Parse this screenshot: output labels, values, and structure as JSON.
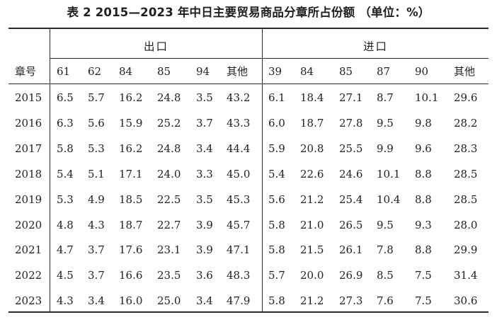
{
  "title": "表 2  2015—2023 年中日主要贸易商品分章所占份额 （单位：%）",
  "header": {
    "row_label": "章号",
    "export_label": "出口",
    "import_label": "进口",
    "export_cols": [
      "61",
      "62",
      "84",
      "85",
      "94",
      "其他"
    ],
    "import_cols": [
      "39",
      "84",
      "85",
      "87",
      "90",
      "其他"
    ]
  },
  "rows": [
    {
      "year": "2015",
      "export": [
        "6.5",
        "5.7",
        "16.2",
        "24.8",
        "3.5",
        "43.2"
      ],
      "import": [
        "6.1",
        "18.4",
        "27.1",
        "8.7",
        "10.1",
        "29.6"
      ]
    },
    {
      "year": "2016",
      "export": [
        "6.3",
        "5.6",
        "15.9",
        "25.2",
        "3.7",
        "43.3"
      ],
      "import": [
        "6.0",
        "18.7",
        "27.8",
        "9.5",
        "9.8",
        "28.2"
      ]
    },
    {
      "year": "2017",
      "export": [
        "5.8",
        "5.3",
        "16.2",
        "24.8",
        "3.4",
        "44.4"
      ],
      "import": [
        "5.9",
        "20.8",
        "25.5",
        "9.9",
        "9.6",
        "28.3"
      ]
    },
    {
      "year": "2018",
      "export": [
        "5.4",
        "5.1",
        "17.1",
        "24.0",
        "3.3",
        "45.0"
      ],
      "import": [
        "5.4",
        "22.6",
        "24.6",
        "10.1",
        "8.8",
        "28.5"
      ]
    },
    {
      "year": "2019",
      "export": [
        "5.3",
        "4.9",
        "18.5",
        "22.5",
        "3.5",
        "45.3"
      ],
      "import": [
        "5.6",
        "21.2",
        "25.4",
        "10.4",
        "8.8",
        "28.5"
      ]
    },
    {
      "year": "2020",
      "export": [
        "4.8",
        "4.3",
        "18.7",
        "22.7",
        "3.9",
        "45.7"
      ],
      "import": [
        "5.8",
        "21.0",
        "26.5",
        "9.5",
        "9.3",
        "28.0"
      ]
    },
    {
      "year": "2021",
      "export": [
        "4.7",
        "3.7",
        "17.6",
        "23.1",
        "3.9",
        "47.1"
      ],
      "import": [
        "5.8",
        "21.5",
        "26.1",
        "7.8",
        "8.8",
        "29.9"
      ]
    },
    {
      "year": "2022",
      "export": [
        "4.5",
        "3.7",
        "16.6",
        "23.5",
        "3.6",
        "48.3"
      ],
      "import": [
        "5.7",
        "20.0",
        "26.9",
        "8.5",
        "7.5",
        "31.4"
      ]
    },
    {
      "year": "2023",
      "export": [
        "4.3",
        "3.4",
        "16.0",
        "25.0",
        "3.4",
        "47.9"
      ],
      "import": [
        "5.8",
        "21.2",
        "27.3",
        "7.6",
        "7.5",
        "30.6"
      ]
    }
  ]
}
